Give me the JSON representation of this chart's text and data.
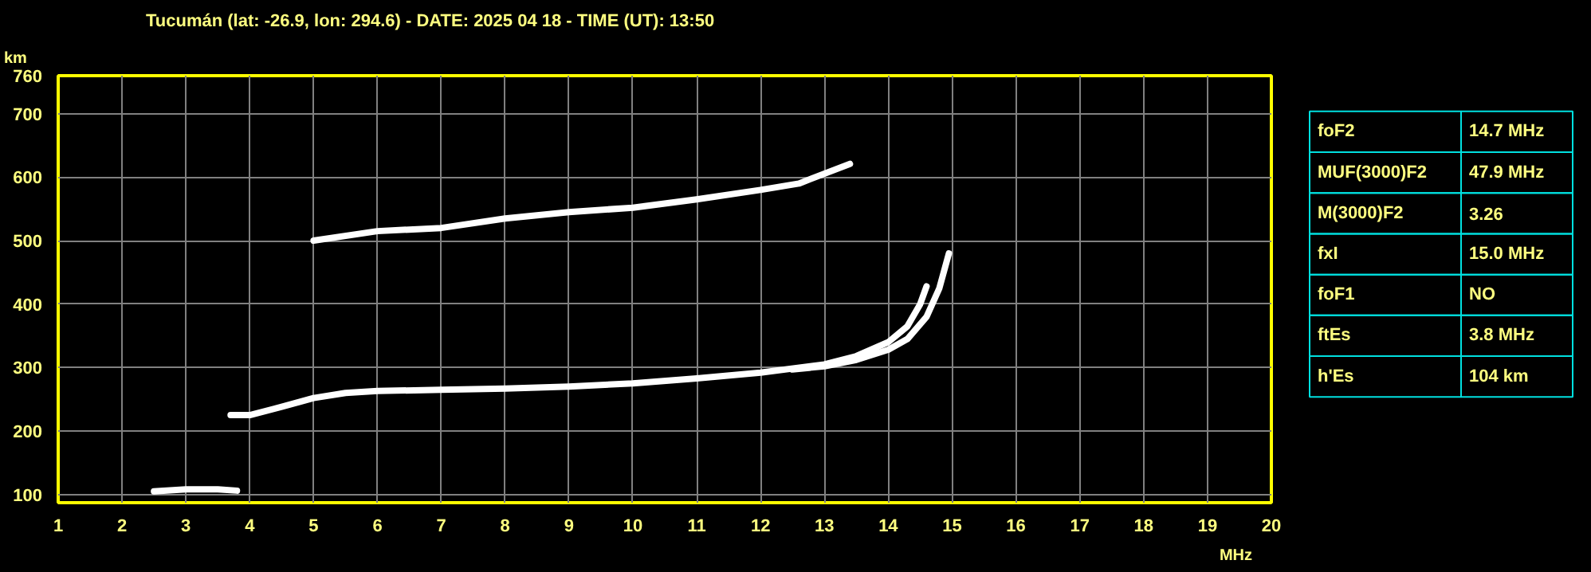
{
  "chart_data": [
    {
      "type": "line",
      "title": "Tucumán (lat: -26.9, lon: 294.6) - DATE: 2025 04 18 - TIME (UT): 13:50",
      "xlabel": "MHz",
      "ylabel": "km",
      "xlim": [
        1,
        20
      ],
      "ylim": [
        87,
        760
      ],
      "xticks": [
        1,
        2,
        3,
        4,
        5,
        6,
        7,
        8,
        9,
        10,
        11,
        12,
        13,
        14,
        15,
        16,
        17,
        18,
        19,
        20
      ],
      "yticks": [
        100,
        200,
        300,
        400,
        500,
        600,
        700,
        760
      ],
      "grid": true,
      "marker": "none",
      "line_style": "solid",
      "series": [
        {
          "color": "#ffffff",
          "x": [
            2.5,
            3.0,
            3.5,
            3.8
          ],
          "values": [
            105,
            108,
            108,
            106
          ]
        },
        {
          "color": "#ffffff",
          "x": [
            3.7,
            4.0,
            4.5,
            5.0,
            5.5,
            6.0,
            7.0,
            8.0,
            9.0,
            10.0,
            11.0,
            12.0,
            13.0,
            13.5,
            14.0,
            14.3,
            14.5,
            14.6
          ],
          "values": [
            225,
            225,
            238,
            252,
            260,
            263,
            265,
            267,
            270,
            275,
            283,
            292,
            305,
            318,
            340,
            365,
            400,
            428
          ]
        },
        {
          "color": "#ffffff",
          "x": [
            12.5,
            13.0,
            13.5,
            14.0,
            14.3,
            14.6,
            14.8,
            14.95
          ],
          "values": [
            297,
            302,
            312,
            328,
            345,
            380,
            425,
            480
          ]
        },
        {
          "color": "#ffffff",
          "x": [
            5.0,
            6.0,
            7.0,
            8.0,
            9.0,
            10.0,
            11.0,
            12.0,
            12.6,
            13.4
          ],
          "values": [
            500,
            515,
            520,
            535,
            545,
            552,
            565,
            580,
            590,
            621
          ]
        }
      ]
    },
    {
      "type": "other",
      "categories": [
        "foF2",
        "MUF(3000)F2",
        "M(3000)F2",
        "fxI",
        "foF1",
        "ftEs",
        "h'Es"
      ],
      "value_labels": [
        "14.7 MHz",
        "47.9 MHz",
        "3.26",
        "15.0 MHz",
        "NO",
        "3.8 MHz",
        "104 km"
      ]
    }
  ]
}
